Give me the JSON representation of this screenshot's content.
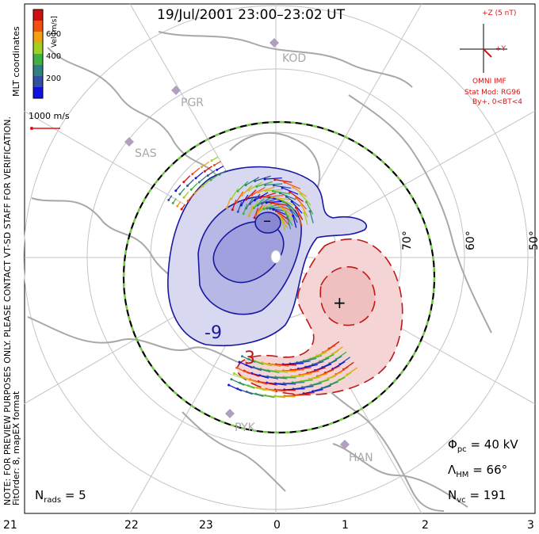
{
  "title": "19/Jul/2001 23:00–23:02 UT",
  "colorbar": {
    "label": "Vel [m/s]",
    "ticks": [
      "600",
      "400",
      "200"
    ],
    "colors": [
      "#d01010",
      "#f05010",
      "#f0a010",
      "#a0d020",
      "#40b040",
      "#308080",
      "#3050a0",
      "#1010e0"
    ]
  },
  "coord_label": "MLT coordinates",
  "scale_vector": "1000 m/s",
  "notice_lines": [
    "NOTE: FOR PREVIEW PURPOSES ONLY. PLEASE CONTACT VT-SD STAFF FOR VERIFICATION.",
    "FitOrder: 8, mapEX format"
  ],
  "imf": {
    "z_label": "+Z (5 nT)",
    "y_label": "+Y",
    "source": "OMNI IMF",
    "model": "Stat Mod: RG96",
    "condition": "By+, 0<BT<4"
  },
  "latitudes": [
    "70°",
    "60°",
    "50°"
  ],
  "radars": [
    "KOD",
    "PGR",
    "SAS",
    "PYK",
    "HAN"
  ],
  "contour_labels": {
    "negative": "-9",
    "positive": "3"
  },
  "extrema": {
    "minimum": "–",
    "maximum": "+"
  },
  "stats": {
    "phi_pc": {
      "symbol": "Φ",
      "sub": "pc",
      "value": "= 40 kV"
    },
    "lambda_hm": {
      "symbol": "Λ",
      "sub": "HM",
      "value": "= 66°"
    },
    "n_vc": {
      "symbol": "N",
      "sub": "vc",
      "value": "= 191"
    },
    "n_rads": {
      "symbol": "N",
      "sub": "rads",
      "value": "= 5"
    }
  },
  "mlt_ticks": [
    "21",
    "22",
    "23",
    "0",
    "1",
    "2",
    "3"
  ],
  "style": {
    "negative_fill": "#c8c8ec",
    "negative_line": "#1818a0",
    "positive_fill": "#f4d0d0",
    "positive_line": "#c01818",
    "land": "#a8a8a8",
    "grid": "#c0c0c0",
    "boundary_dash": "#70d040"
  }
}
